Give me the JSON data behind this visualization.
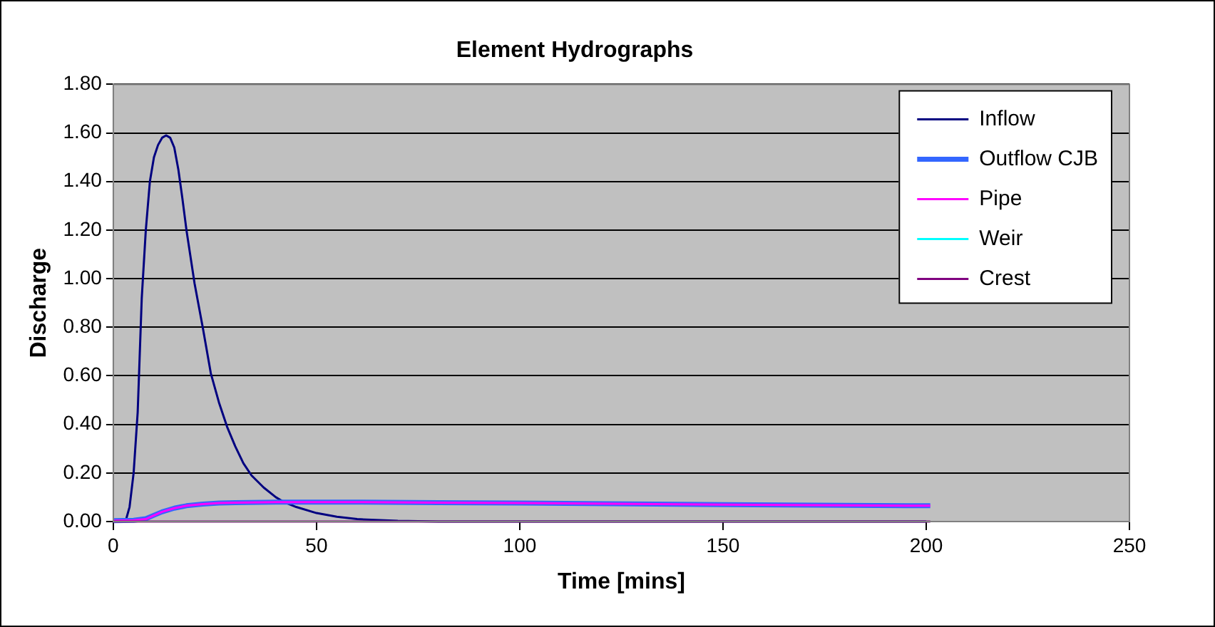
{
  "chart_data": {
    "type": "line",
    "title": "Element Hydrographs",
    "xlabel": "Time [mins]",
    "ylabel": "Discharge",
    "xlim": [
      0,
      250
    ],
    "xticks": [
      0,
      50,
      100,
      150,
      200,
      250
    ],
    "ylim": [
      0,
      1.8
    ],
    "yticks": [
      {
        "value": 0,
        "label": "0.00"
      },
      {
        "value": 0.2,
        "label": "0.20"
      },
      {
        "value": 0.4,
        "label": "0.40"
      },
      {
        "value": 0.6,
        "label": "0.60"
      },
      {
        "value": 0.8,
        "label": "0.80"
      },
      {
        "value": 1.0,
        "label": "1.00"
      },
      {
        "value": 1.2,
        "label": "1.20"
      },
      {
        "value": 1.4,
        "label": "1.40"
      },
      {
        "value": 1.6,
        "label": "1.60"
      },
      {
        "value": 1.8,
        "label": "1.80"
      }
    ],
    "grid": "y",
    "legend": "top right",
    "marker": "none",
    "line_style": "solid",
    "series": [
      {
        "name": "Inflow",
        "color": "#000080",
        "x": [
          0,
          3,
          4,
          5,
          6,
          7,
          8,
          9,
          10,
          11,
          12,
          13,
          14,
          15,
          16,
          17,
          18,
          20,
          22,
          24,
          26,
          28,
          30,
          32,
          34,
          37,
          40,
          42,
          45,
          50,
          55,
          60,
          70,
          80,
          200
        ],
        "values": [
          0,
          0,
          0.06,
          0.2,
          0.45,
          0.92,
          1.2,
          1.4,
          1.5,
          1.55,
          1.58,
          1.59,
          1.58,
          1.54,
          1.45,
          1.33,
          1.2,
          0.98,
          0.8,
          0.61,
          0.49,
          0.39,
          0.31,
          0.24,
          0.19,
          0.14,
          0.1,
          0.08,
          0.06,
          0.035,
          0.02,
          0.01,
          0.003,
          0,
          0
        ]
      },
      {
        "name": "Outflow CJB",
        "color": "#3366ff",
        "x": [
          0,
          5,
          8,
          10,
          12,
          15,
          18,
          22,
          26,
          30,
          40,
          60,
          80,
          100,
          150,
          201
        ],
        "values": [
          0.004,
          0.005,
          0.012,
          0.026,
          0.04,
          0.055,
          0.065,
          0.072,
          0.076,
          0.078,
          0.08,
          0.08,
          0.078,
          0.076,
          0.07,
          0.065
        ]
      },
      {
        "name": "Pipe",
        "color": "#ff00ff",
        "x": [
          0,
          5,
          8,
          10,
          12,
          15,
          18,
          22,
          26,
          30,
          40,
          60,
          80,
          100,
          150,
          201
        ],
        "values": [
          0.004,
          0.005,
          0.01,
          0.025,
          0.04,
          0.055,
          0.065,
          0.072,
          0.076,
          0.078,
          0.08,
          0.08,
          0.078,
          0.076,
          0.07,
          0.065
        ]
      },
      {
        "name": "Weir",
        "color": "#00ffff"
      },
      {
        "name": "Crest",
        "color": "#800080",
        "x": [
          0,
          201
        ],
        "values": [
          0,
          0
        ]
      }
    ]
  }
}
